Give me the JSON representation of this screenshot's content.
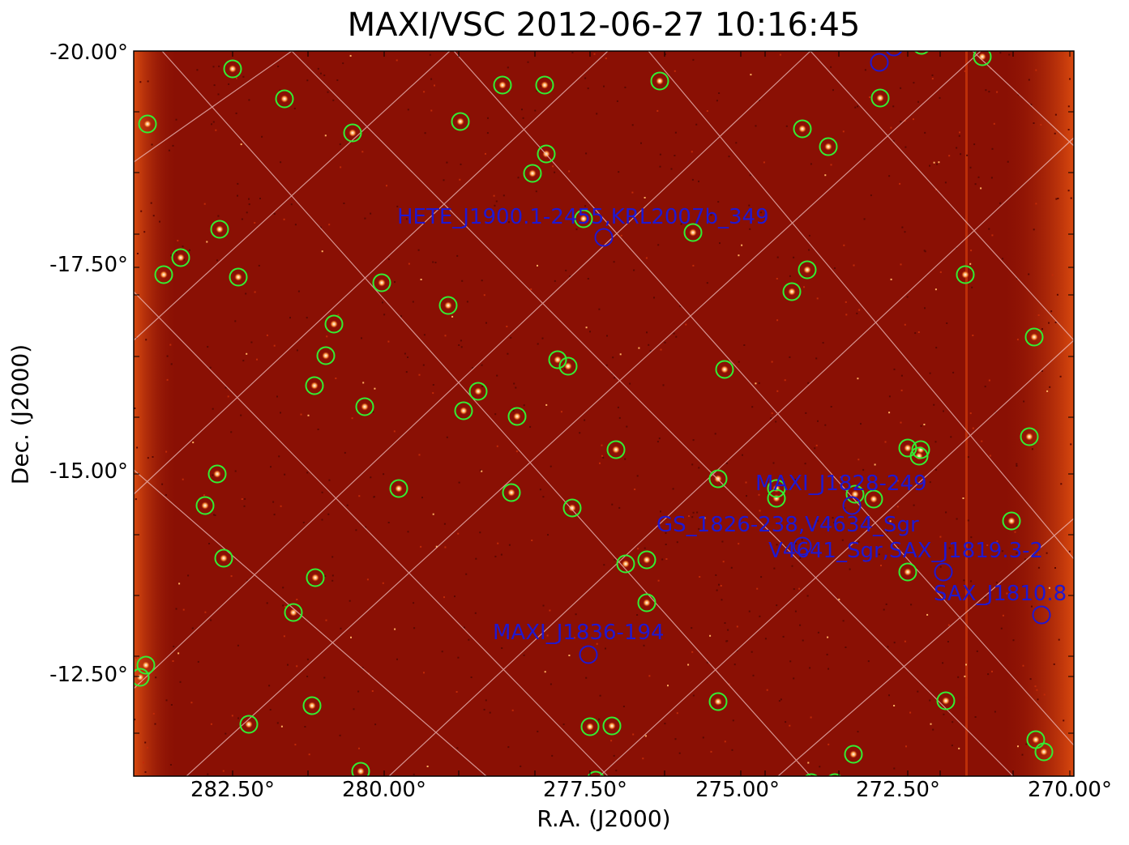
{
  "title": "MAXI/VSC 2012-06-27 10:16:45",
  "xlabel": "R.A. (J2000)",
  "ylabel": "Dec. (J2000)",
  "yticks": [
    "-20.00°",
    "-17.50°",
    "-15.00°",
    "-12.50°"
  ],
  "xticks": [
    "282.50°",
    "280.00°",
    "277.50°",
    "275.00°",
    "272.50°",
    "270.00°"
  ],
  "colors": {
    "background_map": "#8a1004",
    "grid": "#f0c0c0",
    "known_source_circle": "#33ee33",
    "catalog_circle": "#2018d0"
  },
  "source_labels": [
    "HETE_J1900.1-2455,KRL2007b_349",
    "MAXI_J1828-249",
    "GS_1826-238,V4634_Sgr",
    "V4641_Sgr,SAX_J1819.3-2",
    "SAX_J1810.8",
    "MAXI_J1836-194"
  ]
}
